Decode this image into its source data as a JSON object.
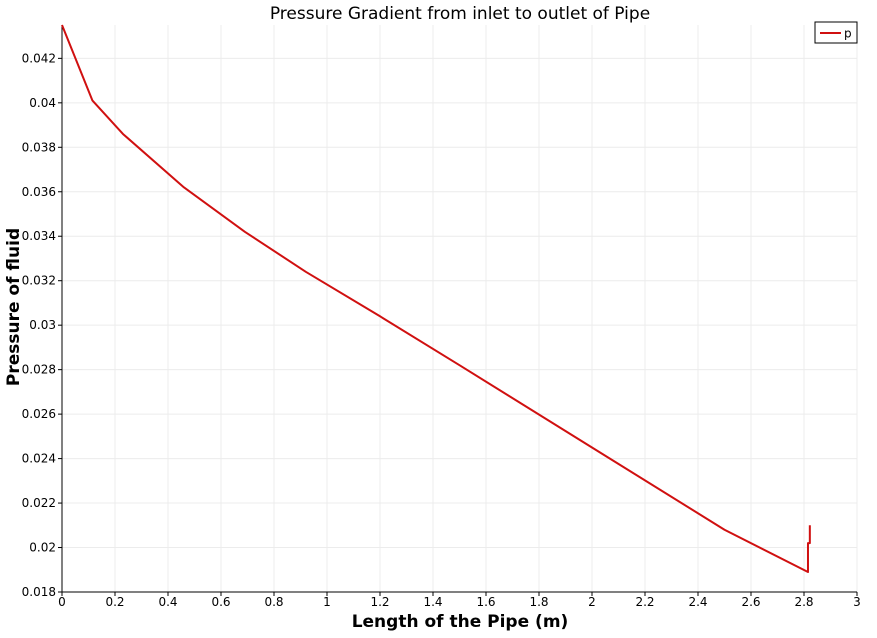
{
  "chart_data": {
    "type": "line",
    "title": "Pressure Gradient from inlet to outlet of Pipe",
    "xlabel": "Length of the Pipe (m)",
    "ylabel": "Pressure of fluid",
    "xlim": [
      0,
      3
    ],
    "ylim": [
      0.018,
      0.0435
    ],
    "x_ticks": [
      0,
      0.2,
      0.4,
      0.6,
      0.8,
      1,
      1.2,
      1.4,
      1.6,
      1.8,
      2,
      2.2,
      2.4,
      2.6,
      2.8,
      3
    ],
    "x_tick_labels": [
      "0",
      "0.2",
      "0.4",
      "0.6",
      "0.8",
      "1",
      "1.2",
      "1.4",
      "1.6",
      "1.8",
      "2",
      "2.2",
      "2.4",
      "2.6",
      "2.8",
      "3"
    ],
    "y_ticks": [
      0.018,
      0.02,
      0.022,
      0.024,
      0.026,
      0.028,
      0.03,
      0.032,
      0.034,
      0.036,
      0.038,
      0.04,
      0.042
    ],
    "y_tick_labels": [
      "0.018",
      "0.02",
      "0.022",
      "0.024",
      "0.026",
      "0.028",
      "0.03",
      "0.032",
      "0.034",
      "0.036",
      "0.038",
      "0.04",
      "0.042"
    ],
    "grid": true,
    "legend_position": "top-right",
    "series": [
      {
        "name": "p",
        "color": "#d01010",
        "x": [
          0,
          0.115,
          0.23,
          0.46,
          0.69,
          0.92,
          1.2,
          1.5,
          2.0,
          2.5,
          2.815,
          2.815,
          2.822,
          2.822
        ],
        "y": [
          0.0435,
          0.0401,
          0.0386,
          0.0362,
          0.0342,
          0.0324,
          0.0304,
          0.0282,
          0.0245,
          0.0208,
          0.0189,
          0.0202,
          0.0202,
          0.021
        ]
      }
    ]
  }
}
